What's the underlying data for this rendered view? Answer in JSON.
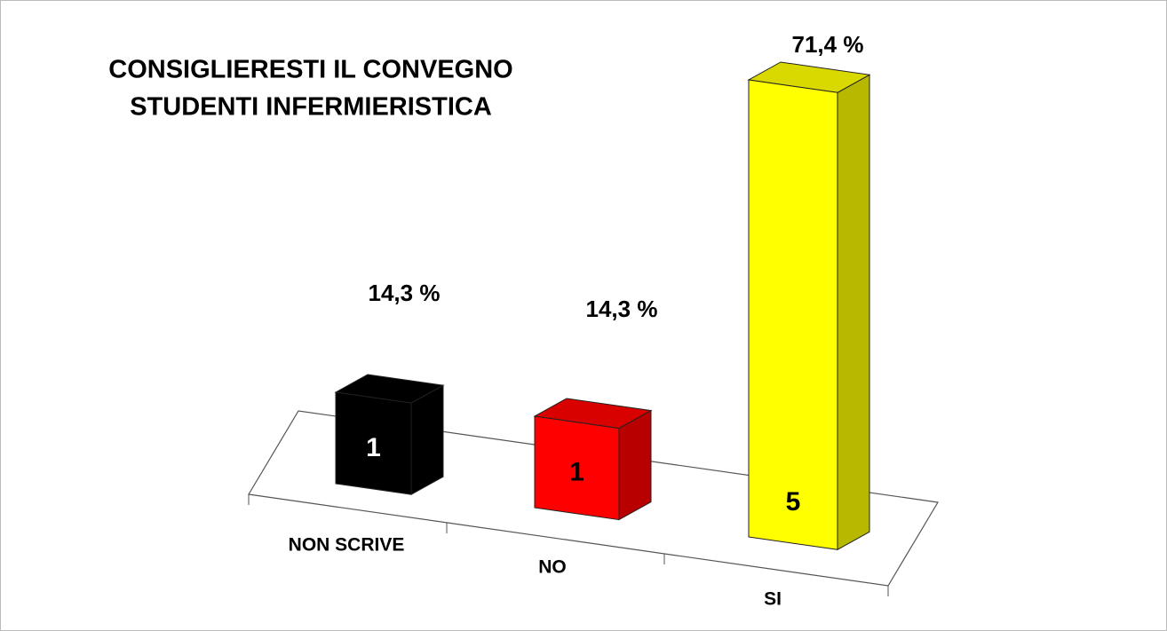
{
  "chart_data": {
    "type": "bar3d",
    "title": [
      "CONSIGLIERESTI IL CONVEGNO",
      "STUDENTI INFERMIERISTICA"
    ],
    "categories": [
      "NON SCRIVE",
      "NO",
      "SI"
    ],
    "values": [
      1,
      1,
      5
    ],
    "percent_labels": [
      "14,3 %",
      "14,3 %",
      "71,4 %"
    ],
    "colors": [
      "#000000",
      "#ff0000",
      "#ffff00"
    ]
  }
}
